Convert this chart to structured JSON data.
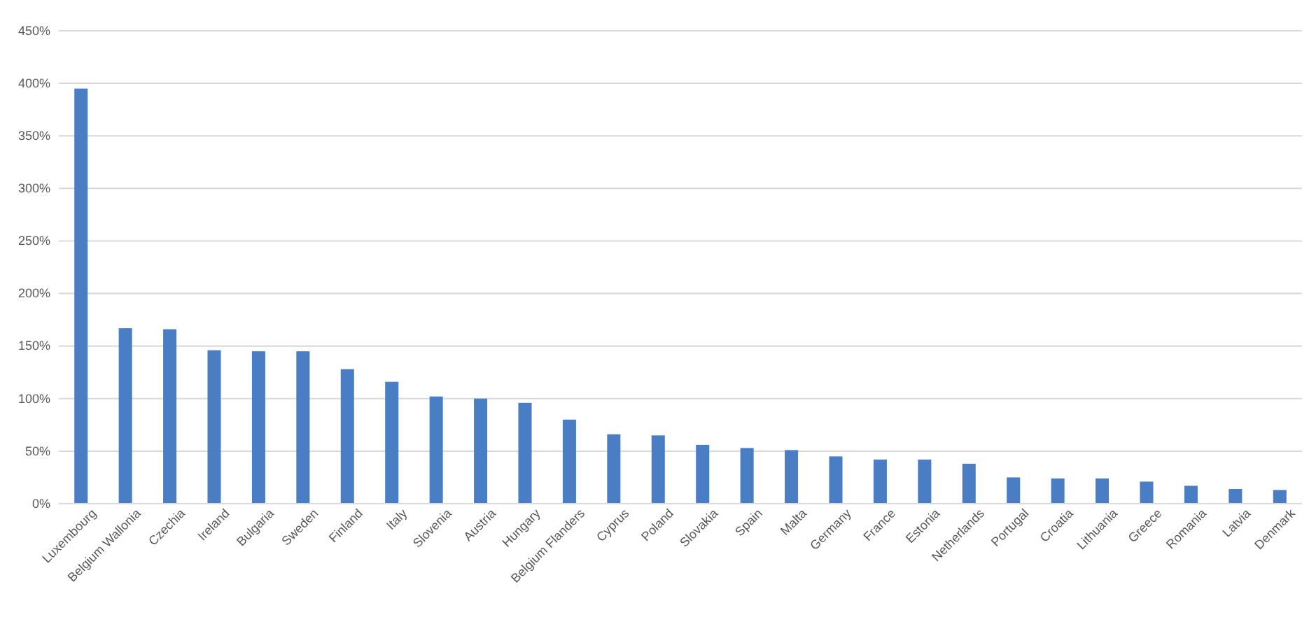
{
  "chart_data": {
    "type": "bar",
    "categories": [
      "Luxembourg",
      "Belgium Wallonia",
      "Czechia",
      "Ireland",
      "Bulgaria",
      "Sweden",
      "Finland",
      "Italy",
      "Slovenia",
      "Austria",
      "Hungary",
      "Belgium Flanders",
      "Cyprus",
      "Poland",
      "Slovakia",
      "Spain",
      "Malta",
      "Germany",
      "France",
      "Estonia",
      "Netherlands",
      "Portugal",
      "Croatia",
      "Lithuania",
      "Greece",
      "Romania",
      "Latvia",
      "Denmark"
    ],
    "values": [
      395,
      167,
      166,
      146,
      145,
      145,
      128,
      116,
      102,
      100,
      96,
      80,
      66,
      65,
      56,
      53,
      51,
      45,
      42,
      42,
      38,
      25,
      24,
      24,
      21,
      17,
      14,
      13
    ],
    "color": "#4a7ec4",
    "ylim": [
      0,
      450
    ],
    "yticks": [
      {
        "value": 0,
        "label": "0%"
      },
      {
        "value": 50,
        "label": "50%"
      },
      {
        "value": 100,
        "label": "100%"
      },
      {
        "value": 150,
        "label": "150%"
      },
      {
        "value": 200,
        "label": "200%"
      },
      {
        "value": 250,
        "label": "250%"
      },
      {
        "value": 300,
        "label": "300%"
      },
      {
        "value": 350,
        "label": "350%"
      },
      {
        "value": 400,
        "label": "400%"
      },
      {
        "value": 450,
        "label": "450%"
      }
    ],
    "grid": "y"
  }
}
